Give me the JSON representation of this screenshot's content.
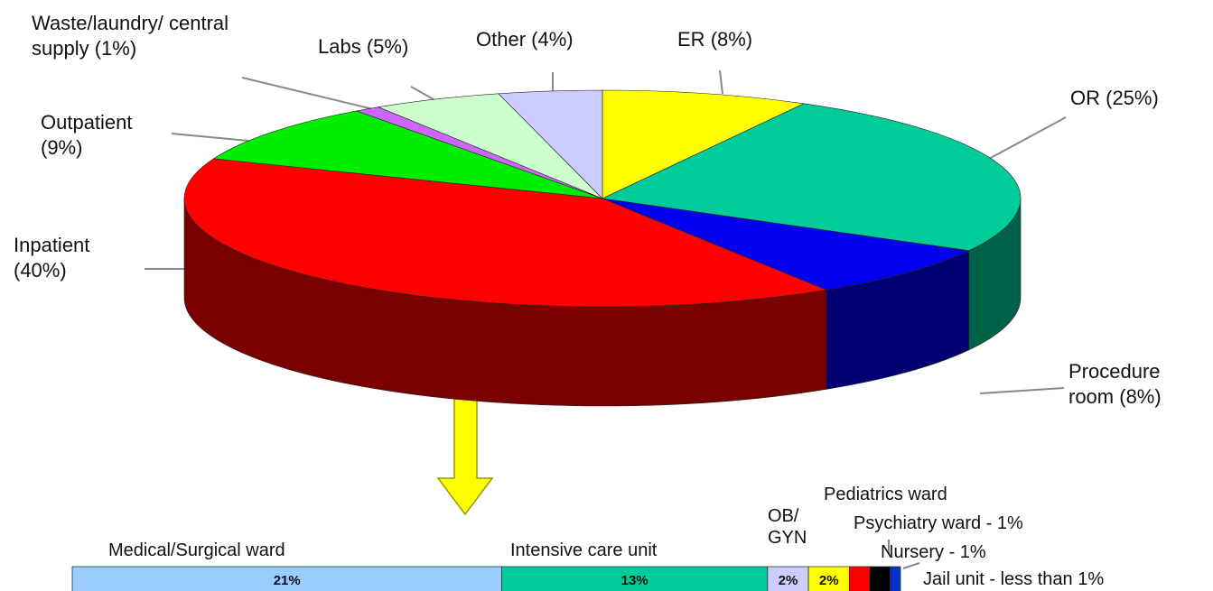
{
  "chart_data": [
    {
      "type": "pie",
      "categories": [
        "ER",
        "OR",
        "Procedure room",
        "Inpatient",
        "Outpatient",
        "Waste/laundry/ central supply",
        "Labs",
        "Other"
      ],
      "values": [
        8,
        25,
        8,
        40,
        9,
        1,
        5,
        4
      ],
      "value_labels": [
        "(8%)",
        "(25%)",
        "(8%)",
        "(40%)",
        "(9%)",
        "(1%)",
        "(5%)",
        "(4%)"
      ],
      "colors": [
        "#ffff00",
        "#00cc99",
        "#0000ee",
        "#ff0000",
        "#00ee00",
        "#cc66ff",
        "#ccffcc",
        "#ccccff"
      ]
    },
    {
      "type": "stacked_bar",
      "categories": [
        "Medical/Surgical ward",
        "Intensive care unit",
        "OB/ GYN",
        "Pediatrics ward",
        "Psychiatry ward - 1%",
        "Nursery - 1%",
        "Jail unit - less than 1%"
      ],
      "values": [
        21,
        13,
        2,
        2,
        1,
        1,
        0.5
      ],
      "value_labels": [
        "21%",
        "13%",
        "2%",
        "2%",
        null,
        null,
        null
      ],
      "colors": [
        "#99ccff",
        "#00cc99",
        "#ccccff",
        "#ffff00",
        "#ff0000",
        "#000000",
        "#0033cc"
      ]
    }
  ]
}
